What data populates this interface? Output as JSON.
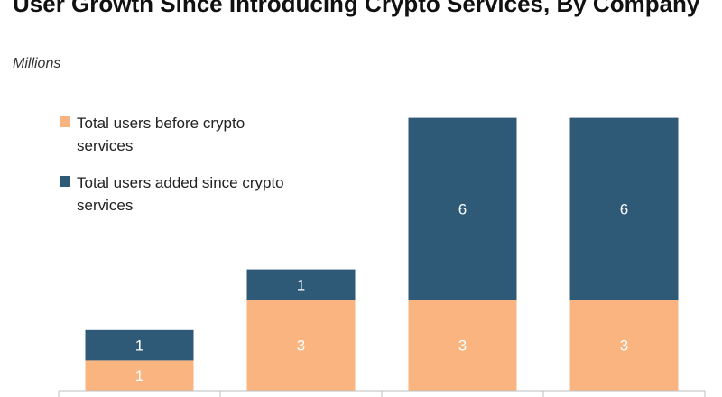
{
  "colors": {
    "before": "#F9B47F",
    "added": "#2E5A78",
    "axis": "#BFBFBF"
  },
  "chart_data": {
    "type": "bar",
    "stacked": true,
    "title": "User Growth Since Introducing Crypto Services, By Company",
    "subtitle": "Millions",
    "categories": [
      "",
      "",
      "",
      ""
    ],
    "series": [
      {
        "name": "Total users before crypto services",
        "values": [
          1,
          3,
          3,
          3
        ],
        "labels": [
          "1",
          "3",
          "3",
          "3"
        ]
      },
      {
        "name": "Total users added since crypto services",
        "values": [
          1,
          1,
          6,
          6
        ],
        "labels": [
          "1",
          "1",
          "6",
          "6"
        ]
      }
    ],
    "ylim": [
      0,
      9
    ],
    "grid": false,
    "legend": "top-left"
  }
}
